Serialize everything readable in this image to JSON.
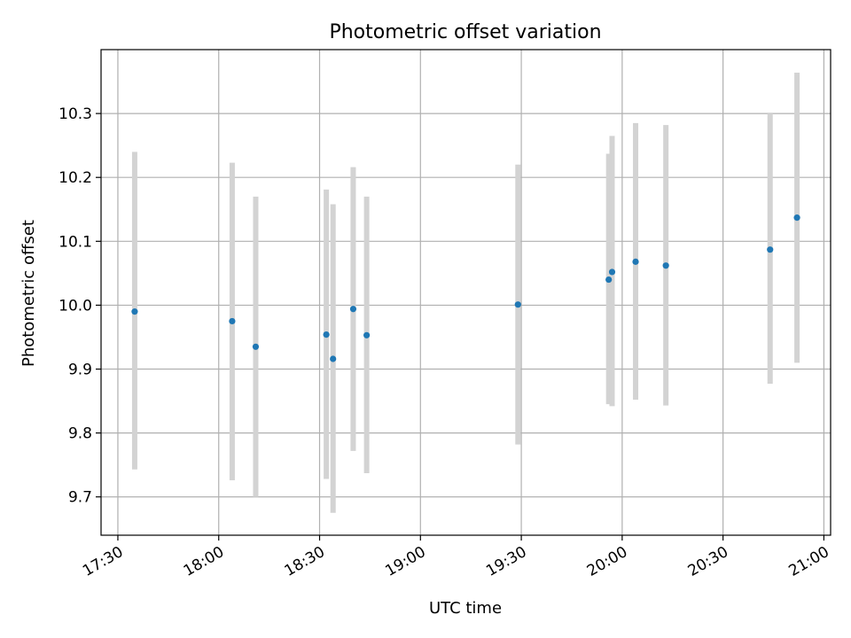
{
  "chart_data": {
    "type": "scatter",
    "title": "Photometric offset variation",
    "xlabel": "UTC time",
    "ylabel": "Photometric offset",
    "x_ticks": [
      "17:30",
      "18:00",
      "18:30",
      "19:00",
      "19:30",
      "20:00",
      "20:30",
      "21:00"
    ],
    "y_ticks": [
      "9.7",
      "9.8",
      "9.9",
      "10.0",
      "10.1",
      "10.2",
      "10.3"
    ],
    "xlim": [
      "17:25",
      "21:02"
    ],
    "ylim": [
      9.64,
      10.4
    ],
    "grid": true,
    "marker_color": "#1f77b4",
    "errorbar_color": "#d3d3d3",
    "points": [
      {
        "time": "17:35",
        "y": 9.99,
        "err_low": 9.743,
        "err_high": 10.24
      },
      {
        "time": "18:04",
        "y": 9.975,
        "err_low": 9.726,
        "err_high": 10.223
      },
      {
        "time": "18:11",
        "y": 9.935,
        "err_low": 9.7,
        "err_high": 10.17
      },
      {
        "time": "18:32",
        "y": 9.954,
        "err_low": 9.728,
        "err_high": 10.181
      },
      {
        "time": "18:34",
        "y": 9.916,
        "err_low": 9.675,
        "err_high": 10.158
      },
      {
        "time": "18:40",
        "y": 9.994,
        "err_low": 9.772,
        "err_high": 10.216
      },
      {
        "time": "18:44",
        "y": 9.953,
        "err_low": 9.737,
        "err_high": 10.17
      },
      {
        "time": "19:29",
        "y": 10.001,
        "err_low": 9.782,
        "err_high": 10.22
      },
      {
        "time": "19:56",
        "y": 10.04,
        "err_low": 9.845,
        "err_high": 10.237
      },
      {
        "time": "19:57",
        "y": 10.052,
        "err_low": 9.842,
        "err_high": 10.265
      },
      {
        "time": "20:04",
        "y": 10.068,
        "err_low": 9.852,
        "err_high": 10.285
      },
      {
        "time": "20:13",
        "y": 10.062,
        "err_low": 9.843,
        "err_high": 10.282
      },
      {
        "time": "20:44",
        "y": 10.087,
        "err_low": 9.877,
        "err_high": 10.3
      },
      {
        "time": "20:52",
        "y": 10.137,
        "err_low": 9.91,
        "err_high": 10.364
      }
    ]
  }
}
